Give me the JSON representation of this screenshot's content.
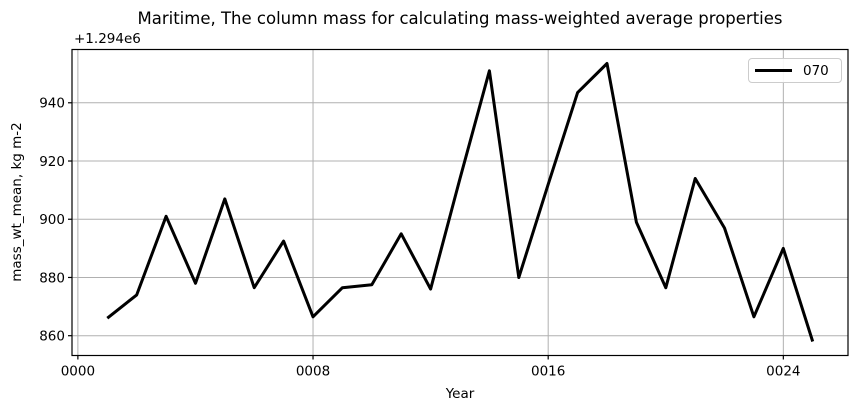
{
  "chart_data": {
    "type": "line",
    "title": "Maritime, The column mass for calculating mass-weighted average properties",
    "xlabel": "Year",
    "ylabel": "mass_wt_mean, kg m-2",
    "axis_offset_text": "+1.294e6",
    "x": [
      1,
      2,
      3,
      4,
      5,
      6,
      7,
      8,
      9,
      10,
      11,
      12,
      13,
      14,
      15,
      16,
      17,
      18,
      19,
      20,
      21,
      22,
      23,
      24,
      25
    ],
    "series": [
      {
        "name": "070",
        "color": "#000000",
        "line_width": 3,
        "values": [
          866,
          874,
          901,
          878,
          907,
          876.5,
          892.5,
          866.5,
          876.5,
          877.5,
          895,
          876,
          914,
          951,
          880,
          912,
          943.5,
          953.5,
          899,
          876.5,
          914,
          897,
          866.5,
          890,
          858
        ]
      }
    ],
    "xticks": {
      "values": [
        0,
        8,
        16,
        24
      ],
      "labels": [
        "0000",
        "0008",
        "0016",
        "0024"
      ]
    },
    "yticks": {
      "values": [
        860,
        880,
        900,
        920,
        940
      ],
      "labels": [
        "860",
        "880",
        "900",
        "920",
        "940"
      ]
    },
    "xlim": [
      -0.2,
      26.2
    ],
    "ylim": [
      853.2,
      958.3
    ],
    "grid": true,
    "grid_color": "#b0b0b0",
    "spine_color": "#000000",
    "background": "#ffffff",
    "legend": {
      "position": "upper right",
      "entries": [
        "070"
      ]
    }
  }
}
